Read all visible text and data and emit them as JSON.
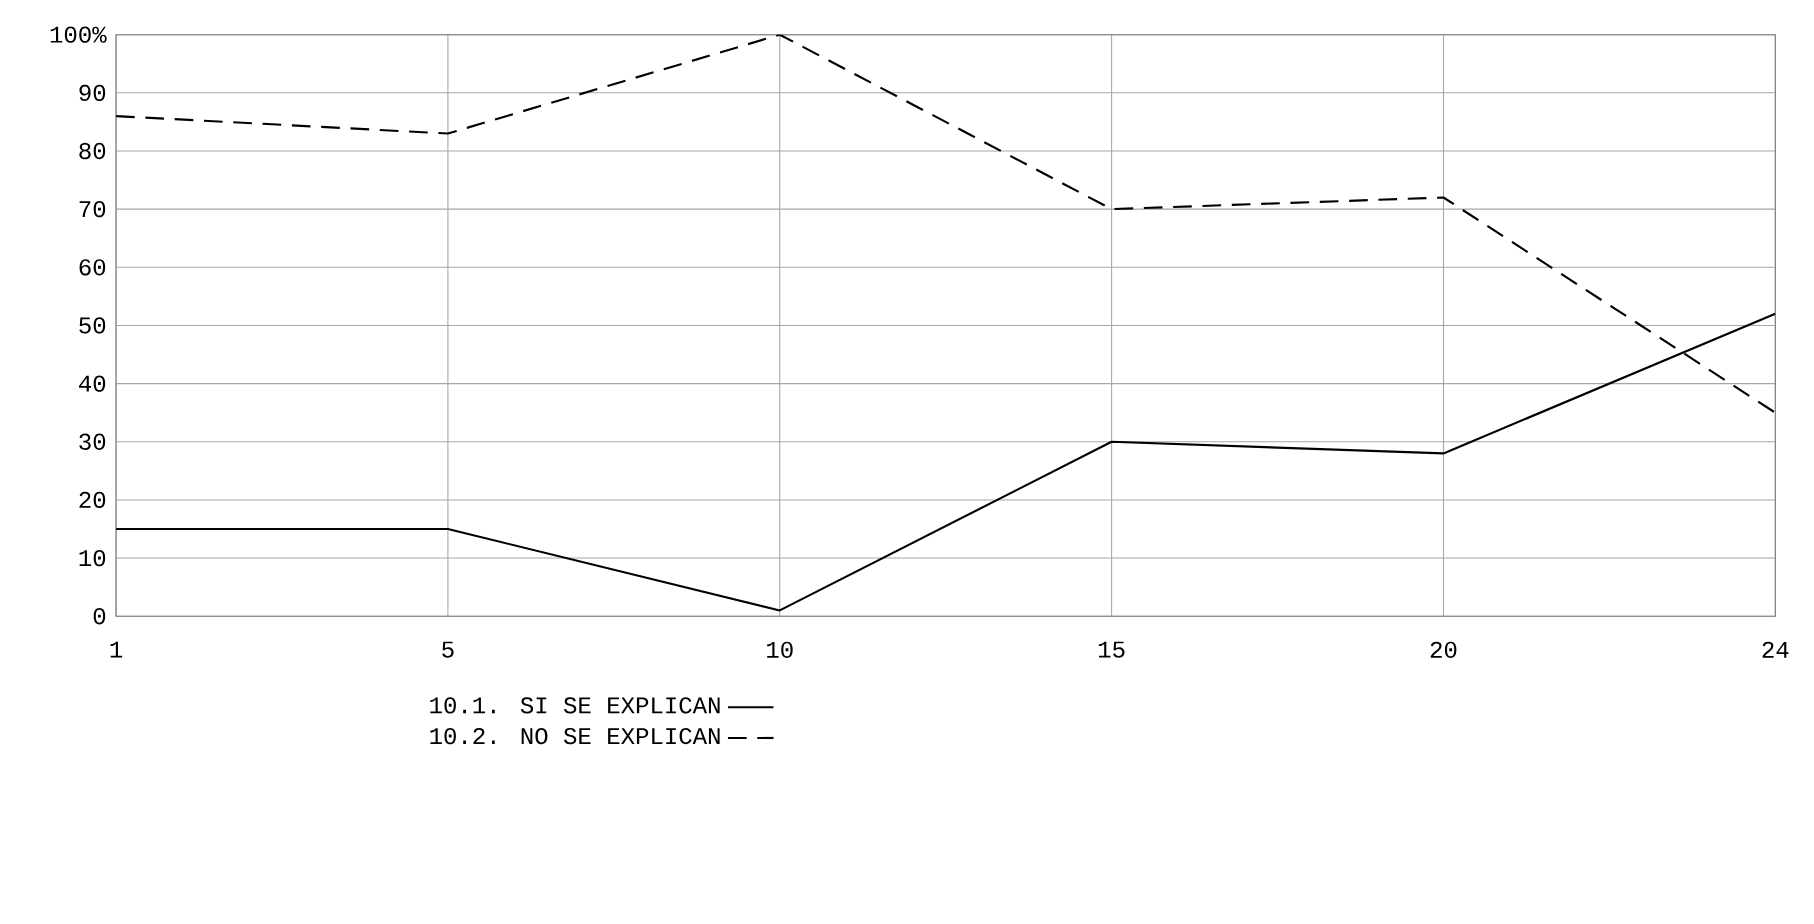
{
  "chart_data": {
    "type": "line",
    "categories": [
      "1",
      "5",
      "10",
      "15",
      "20",
      "24"
    ],
    "series": [
      {
        "name": "10.1. SI SE EXPLICAN",
        "color": "#000000",
        "line_style": "solid",
        "values": [
          15,
          15,
          1,
          30,
          28,
          52
        ]
      },
      {
        "name": "10.2. NO SE EXPLICAN",
        "color": "#000000",
        "line_style": "dashed",
        "values": [
          86,
          83,
          100,
          70,
          72,
          35
        ]
      }
    ],
    "ylim": [
      0,
      100
    ],
    "yticks": [
      0,
      10,
      20,
      30,
      40,
      50,
      60,
      70,
      80,
      90,
      {
        "value": 100,
        "label": "100%"
      }
    ],
    "grid": true,
    "legend": "bottom",
    "marker": "none"
  }
}
